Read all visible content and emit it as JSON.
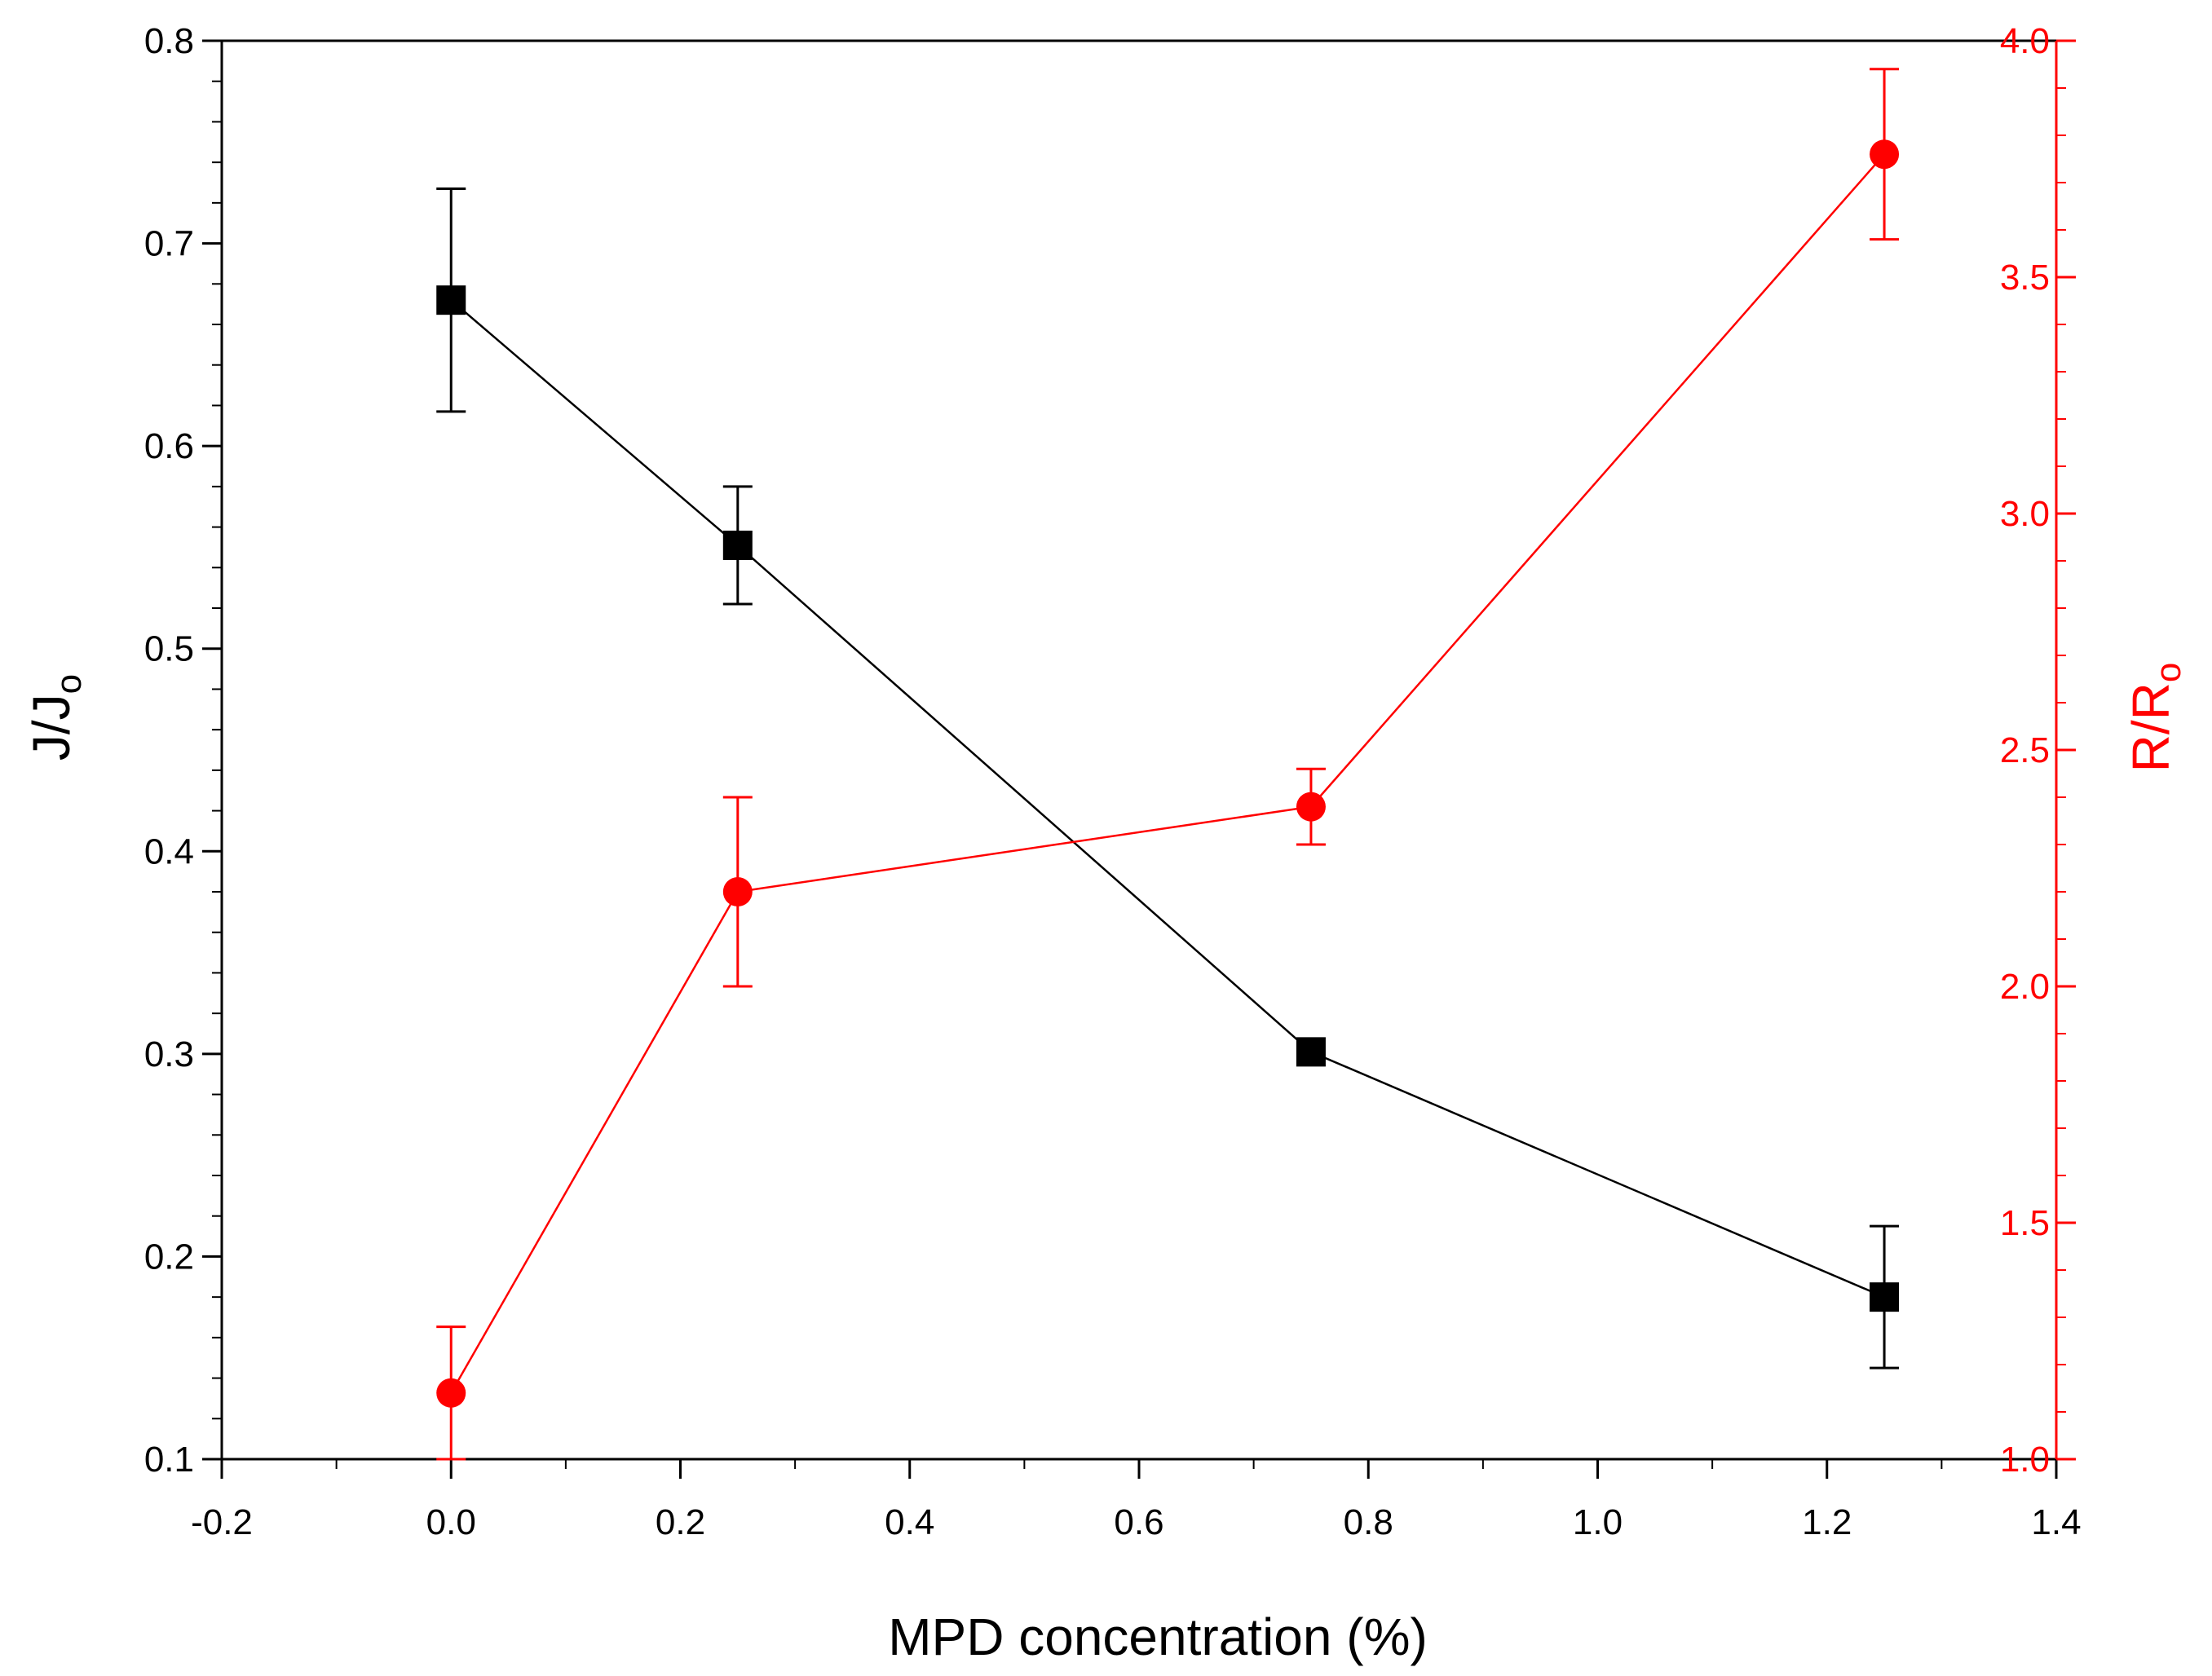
{
  "chart_data": {
    "type": "line",
    "title": "",
    "xlabel": "MPD concentration (%)",
    "ylabel": {
      "main": "J/J",
      "sub": "o"
    },
    "y2label": {
      "main": "R/R",
      "sub": "o"
    },
    "xlim": [
      -0.2,
      1.4
    ],
    "ylim": [
      0.1,
      0.8
    ],
    "y2lim": [
      1.0,
      4.0
    ],
    "x_ticks": [
      "-0.2",
      "0.0",
      "0.2",
      "0.4",
      "0.6",
      "0.8",
      "1.0",
      "1.2",
      "1.4"
    ],
    "y_ticks": [
      "0.1",
      "0.2",
      "0.3",
      "0.4",
      "0.5",
      "0.6",
      "0.7",
      "0.8"
    ],
    "y2_ticks": [
      "1.0",
      "1.5",
      "2.0",
      "2.5",
      "3.0",
      "3.5",
      "4.0"
    ],
    "grid": false,
    "series": [
      {
        "name": "J/Jo",
        "axis": "left",
        "marker": "square",
        "color": "#000000",
        "x": [
          0.0,
          0.25,
          0.75,
          1.25
        ],
        "values": [
          0.672,
          0.551,
          0.301,
          0.18
        ],
        "error": [
          0.055,
          0.029,
          0.0,
          0.035
        ]
      },
      {
        "name": "R/Ro",
        "axis": "right",
        "marker": "circle",
        "color": "#ff0000",
        "x": [
          0.0,
          0.25,
          0.75,
          1.25
        ],
        "values": [
          1.14,
          2.2,
          2.38,
          3.76
        ],
        "error": [
          0.14,
          0.2,
          0.08,
          0.18
        ]
      }
    ]
  }
}
